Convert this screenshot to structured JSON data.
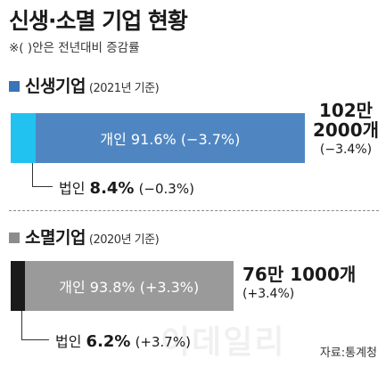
{
  "title": "신생·소멸 기업 현황",
  "note": "※(  )안은 전년대비 증감률",
  "colors": {
    "new_individual": "#4f86c2",
    "new_corporate": "#22c2f0",
    "closed_individual": "#9a9a9a",
    "closed_corporate": "#1a1a1a",
    "new_square": "#3a74b8",
    "closed_square": "#8c8c8c"
  },
  "chart_data": [
    {
      "type": "bar",
      "title": "신생기업",
      "subtitle": "(2021년 기준)",
      "series": [
        {
          "name": "개인",
          "value": 91.6,
          "change": "(−3.7%)"
        },
        {
          "name": "법인",
          "value": 8.4,
          "change": "(−0.3%)"
        }
      ],
      "total_line1": "102만",
      "total_line2": "2000개",
      "total_change": "(−3.4%)"
    },
    {
      "type": "bar",
      "title": "소멸기업",
      "subtitle": "(2020년 기준)",
      "series": [
        {
          "name": "개인",
          "value": 93.8,
          "change": "(+3.3%)"
        },
        {
          "name": "법인",
          "value": 6.2,
          "change": "(+3.7%)"
        }
      ],
      "total_line1": "76만 1000개",
      "total_change": "(+3.4%)"
    }
  ],
  "source": "자료:통계청",
  "watermark": "이데일리"
}
